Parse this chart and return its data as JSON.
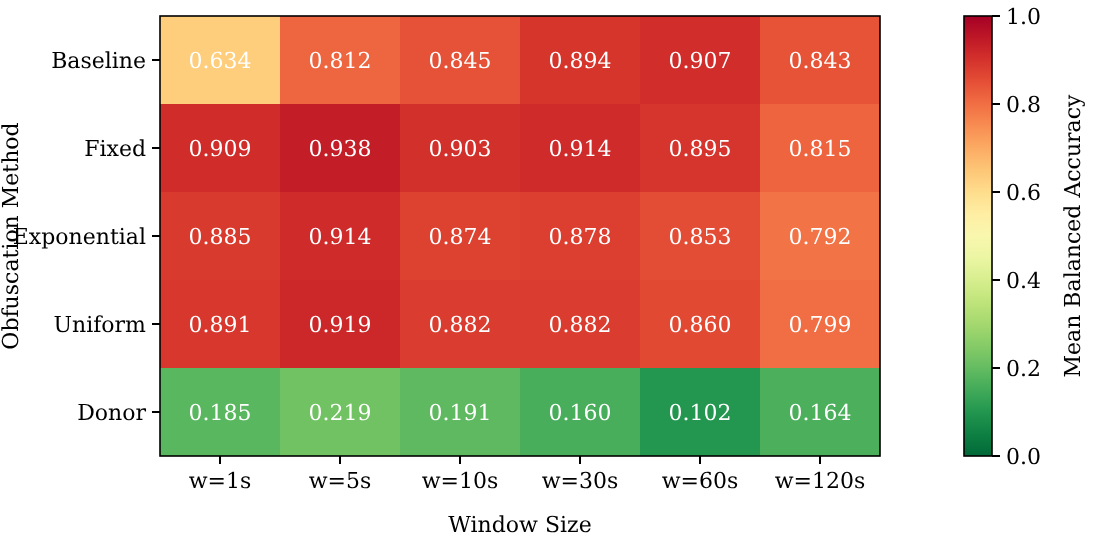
{
  "chart_data": {
    "type": "heatmap",
    "xlabel": "Window Size",
    "ylabel": "Obfuscation Method",
    "clabel": "Mean Balanced Accuracy",
    "categories": [
      "w=1s",
      "w=5s",
      "w=10s",
      "w=30s",
      "w=60s",
      "w=120s"
    ],
    "y_categories": [
      "Baseline",
      "Fixed",
      "Exponential",
      "Uniform",
      "Donor"
    ],
    "cells": [
      [
        0.634,
        0.812,
        0.845,
        0.894,
        0.907,
        0.843
      ],
      [
        0.909,
        0.938,
        0.903,
        0.914,
        0.895,
        0.815
      ],
      [
        0.885,
        0.914,
        0.874,
        0.878,
        0.853,
        0.792
      ],
      [
        0.891,
        0.919,
        0.882,
        0.882,
        0.86,
        0.799
      ],
      [
        0.185,
        0.219,
        0.191,
        0.16,
        0.102,
        0.164
      ]
    ],
    "cell_labels": [
      [
        "0.634",
        "0.812",
        "0.845",
        "0.894",
        "0.907",
        "0.843"
      ],
      [
        "0.909",
        "0.938",
        "0.903",
        "0.914",
        "0.895",
        "0.815"
      ],
      [
        "0.885",
        "0.914",
        "0.874",
        "0.878",
        "0.853",
        "0.792"
      ],
      [
        "0.891",
        "0.919",
        "0.882",
        "0.882",
        "0.860",
        "0.799"
      ],
      [
        "0.185",
        "0.219",
        "0.191",
        "0.160",
        "0.102",
        "0.164"
      ]
    ],
    "data_labels": true,
    "clim": [
      0,
      1
    ],
    "cticks": [
      {
        "value": 0,
        "label": "0.0"
      },
      {
        "value": 0.2,
        "label": "0.2"
      },
      {
        "value": 0.4,
        "label": "0.4"
      },
      {
        "value": 0.6,
        "label": "0.6"
      },
      {
        "value": 0.8,
        "label": "0.8"
      },
      {
        "value": 1,
        "label": "1.0"
      }
    ]
  }
}
